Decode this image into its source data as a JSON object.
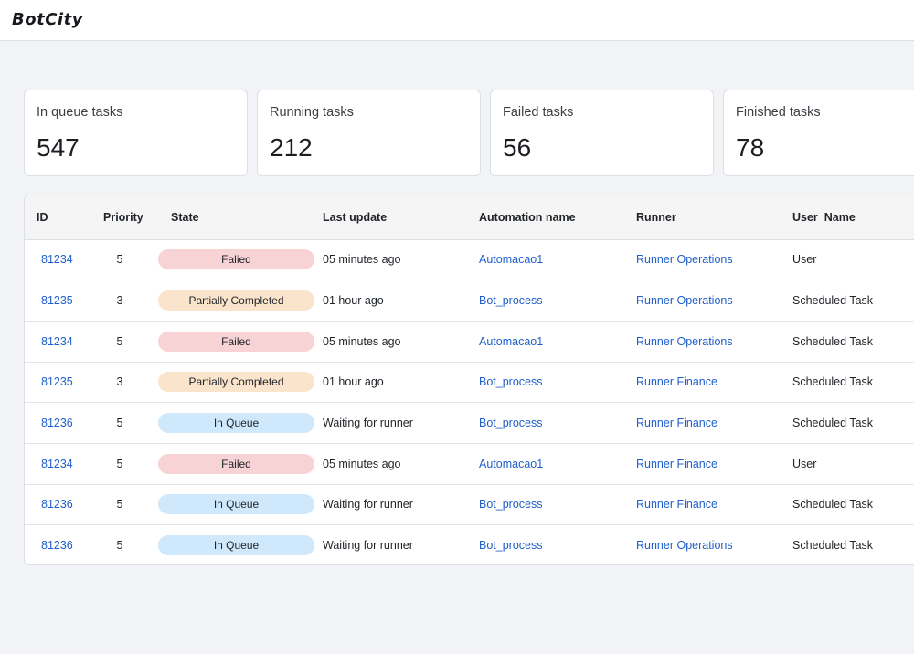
{
  "header": {
    "logo": "BotCity"
  },
  "stats": [
    {
      "label": "In queue tasks",
      "value": "547"
    },
    {
      "label": "Running tasks",
      "value": "212"
    },
    {
      "label": "Failed tasks",
      "value": "56"
    },
    {
      "label": "Finished tasks",
      "value": "78"
    }
  ],
  "table": {
    "columns": [
      "ID",
      "Priority",
      "State",
      "Last update",
      "Automation name",
      "Runner",
      "User  Name"
    ],
    "rows": [
      {
        "id": "81234",
        "priority": "5",
        "state": "Falied",
        "state_kind": "failed",
        "last_update": "05 minutes ago",
        "automation": "Automacao1",
        "runner": "Runner Operations",
        "user": "User"
      },
      {
        "id": "81235",
        "priority": "3",
        "state": "Partially Completed",
        "state_kind": "partial",
        "last_update": "01 hour ago",
        "automation": "Bot_process",
        "runner": "Runner Operations",
        "user": "Scheduled Task"
      },
      {
        "id": "81234",
        "priority": "5",
        "state": "Failed",
        "state_kind": "failed",
        "last_update": "05 minutes ago",
        "automation": "Automacao1",
        "runner": "Runner Operations",
        "user": "Scheduled Task"
      },
      {
        "id": "81235",
        "priority": "3",
        "state": "Partially Completed",
        "state_kind": "partial",
        "last_update": "01 hour ago",
        "automation": "Bot_process",
        "runner": "Runner Finance",
        "user": "Scheduled Task"
      },
      {
        "id": "81236",
        "priority": "5",
        "state": "In Queue",
        "state_kind": "queue",
        "last_update": "Waiting for runner",
        "automation": "Bot_process",
        "runner": "Runner Finance",
        "user": "Scheduled Task"
      },
      {
        "id": "81234",
        "priority": "5",
        "state": "Failed",
        "state_kind": "failed",
        "last_update": "05 minutes ago",
        "automation": "Automacao1",
        "runner": "Runner Finance",
        "user": "User"
      },
      {
        "id": "81236",
        "priority": "5",
        "state": "In Queue",
        "state_kind": "queue",
        "last_update": "Waiting for runner",
        "automation": "Bot_process",
        "runner": "Runner Finance",
        "user": "Scheduled Task"
      },
      {
        "id": "81236",
        "priority": "5",
        "state": "In Queue",
        "state_kind": "queue",
        "last_update": "Waiting for runner",
        "automation": "Bot_process",
        "runner": "Runner Operations",
        "user": "Scheduled Task"
      }
    ]
  },
  "colors": {
    "link": "#1f5fcc",
    "badge_failed": "#f8d3d5",
    "badge_partial": "#fbe4cc",
    "badge_queue": "#cfe8fb"
  }
}
